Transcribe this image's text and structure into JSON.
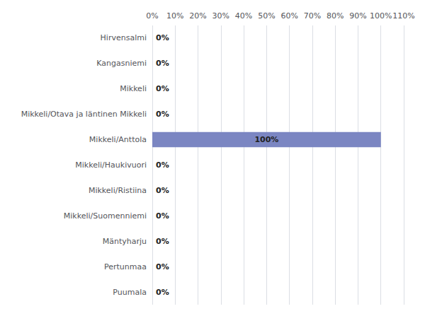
{
  "chart_data": {
    "type": "bar",
    "orientation": "horizontal",
    "categories": [
      "Hirvensalmi",
      "Kangasniemi",
      "Mikkeli",
      "Mikkeli/Otava ja läntinen Mikkeli",
      "Mikkeli/Anttola",
      "Mikkeli/Haukivuori",
      "Mikkeli/Ristiina",
      "Mikkeli/Suomenniemi",
      "Mäntyharju",
      "Pertunmaa",
      "Puumala"
    ],
    "values": [
      0,
      0,
      0,
      0,
      100,
      0,
      0,
      0,
      0,
      0,
      0
    ],
    "value_labels": [
      "0%",
      "0%",
      "0%",
      "0%",
      "100%",
      "0%",
      "0%",
      "0%",
      "0%",
      "0%",
      "0%"
    ],
    "color": "#7b86c2",
    "xlim": [
      0,
      110
    ],
    "xticks": [
      {
        "value": 0,
        "label": "0%"
      },
      {
        "value": 10,
        "label": "10%"
      },
      {
        "value": 20,
        "label": "20%"
      },
      {
        "value": 30,
        "label": "30%"
      },
      {
        "value": 40,
        "label": "40%"
      },
      {
        "value": 50,
        "label": "50%"
      },
      {
        "value": 60,
        "label": "60%"
      },
      {
        "value": 70,
        "label": "70%"
      },
      {
        "value": 80,
        "label": "80%"
      },
      {
        "value": 90,
        "label": "90%"
      },
      {
        "value": 100,
        "label": "100%"
      },
      {
        "value": 110,
        "label": "110%"
      }
    ],
    "grid": true,
    "data_labels": true
  }
}
